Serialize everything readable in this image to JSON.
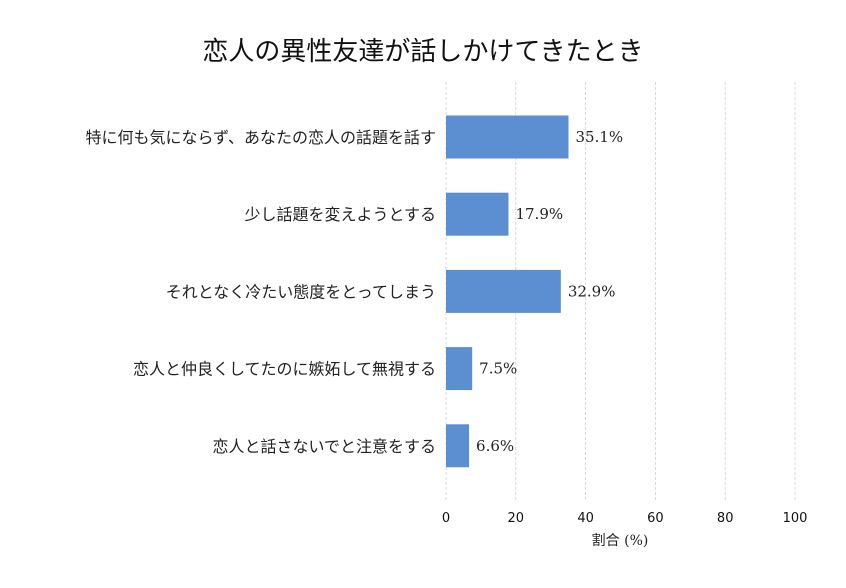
{
  "chart_data": {
    "type": "bar",
    "orientation": "horizontal",
    "title": "恋人の異性友達が話しかけてきたとき",
    "xlabel": "割合 (%)",
    "ylabel": "",
    "xlim": [
      0,
      100
    ],
    "xticks": [
      0,
      20,
      40,
      60,
      80,
      100
    ],
    "grid": "x-dashed",
    "bar_color": "#5b8fd2",
    "value_suffix": "%",
    "categories": [
      "特に何も気にならず、あなたの恋人の話題を話す",
      "少し話題を変えようとする",
      "それとなく冷たい態度をとってしまう",
      "恋人と仲良くしてたのに嫉妬して無視する",
      "恋人と話さないでと注意をする"
    ],
    "values": [
      35.1,
      17.9,
      32.9,
      7.5,
      6.6
    ]
  }
}
